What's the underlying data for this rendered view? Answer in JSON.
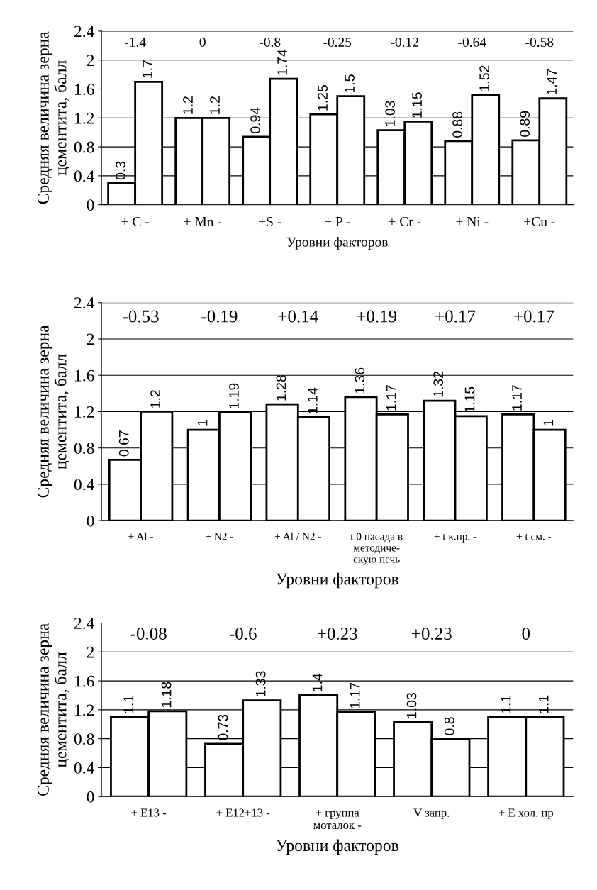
{
  "chart_data": [
    {
      "type": "bar",
      "categories": [
        "+ C -",
        "+ Mn -",
        "+S -",
        "+ P -",
        "+ Cr -",
        "+ Ni -",
        "+Cu -"
      ],
      "series": [
        {
          "color": "#ffffff",
          "values": [
            0.3,
            1.2,
            0.94,
            1.25,
            1.03,
            0.88,
            0.89
          ]
        },
        {
          "color": "#ffffff",
          "values": [
            1.7,
            1.2,
            1.74,
            1.5,
            1.15,
            1.52,
            1.47
          ]
        }
      ],
      "ylim": [
        0,
        2.4
      ],
      "yticks": [
        0,
        0.4,
        0.8,
        1.2,
        1.6,
        2,
        2.4
      ],
      "grid": "y",
      "data_labels": true,
      "ylabel": "Средняя величина зерна\nцементита, балл",
      "xlabel": "Уровни факторов",
      "annotations": [
        "-1.4",
        "0",
        "-0.8",
        "-0.25",
        "-0.12",
        "-0.64",
        "-0.58"
      ]
    },
    {
      "type": "bar",
      "categories": [
        "+ Al -",
        "+ N2 -",
        "+ Al / N2 -",
        "t 0 пасада в\nметодиче-\nскую печь",
        "+ t к.пр. -",
        "+ t см. -"
      ],
      "series": [
        {
          "color": "#ffffff",
          "values": [
            0.67,
            1,
            1.28,
            1.36,
            1.32,
            1.17
          ]
        },
        {
          "color": "#ffffff",
          "values": [
            1.2,
            1.19,
            1.14,
            1.17,
            1.15,
            1
          ]
        }
      ],
      "ylim": [
        0,
        2.4
      ],
      "yticks": [
        0,
        0.4,
        0.8,
        1.2,
        1.6,
        2,
        2.4
      ],
      "grid": "y",
      "data_labels": true,
      "ylabel": "Средняя величина зерна\nцементита, балл",
      "xlabel": "Уровни факторов",
      "annotations": [
        "-0.53",
        "-0.19",
        "+0.14",
        "+0.19",
        "+0.17",
        "+0.17"
      ]
    },
    {
      "type": "bar",
      "categories": [
        "+ E13 -",
        "+ E12+13 -",
        "+ группа\nмоталок -",
        "V запр.",
        "+ E хол. пр"
      ],
      "series": [
        {
          "color": "#ffffff",
          "values": [
            1.1,
            0.73,
            1.4,
            1.03,
            1.1
          ]
        },
        {
          "color": "#ffffff",
          "values": [
            1.18,
            1.33,
            1.17,
            0.8,
            1.1
          ]
        }
      ],
      "ylim": [
        0,
        2.4
      ],
      "yticks": [
        0,
        0.4,
        0.8,
        1.2,
        1.6,
        2,
        2.4
      ],
      "grid": "y",
      "data_labels": true,
      "ylabel": "Средняя величина зерна\nцементита, балл",
      "xlabel": "Уровни факторов",
      "annotations": [
        "-0.08",
        "-0.6",
        "+0.23",
        "+0.23",
        "0"
      ]
    }
  ]
}
